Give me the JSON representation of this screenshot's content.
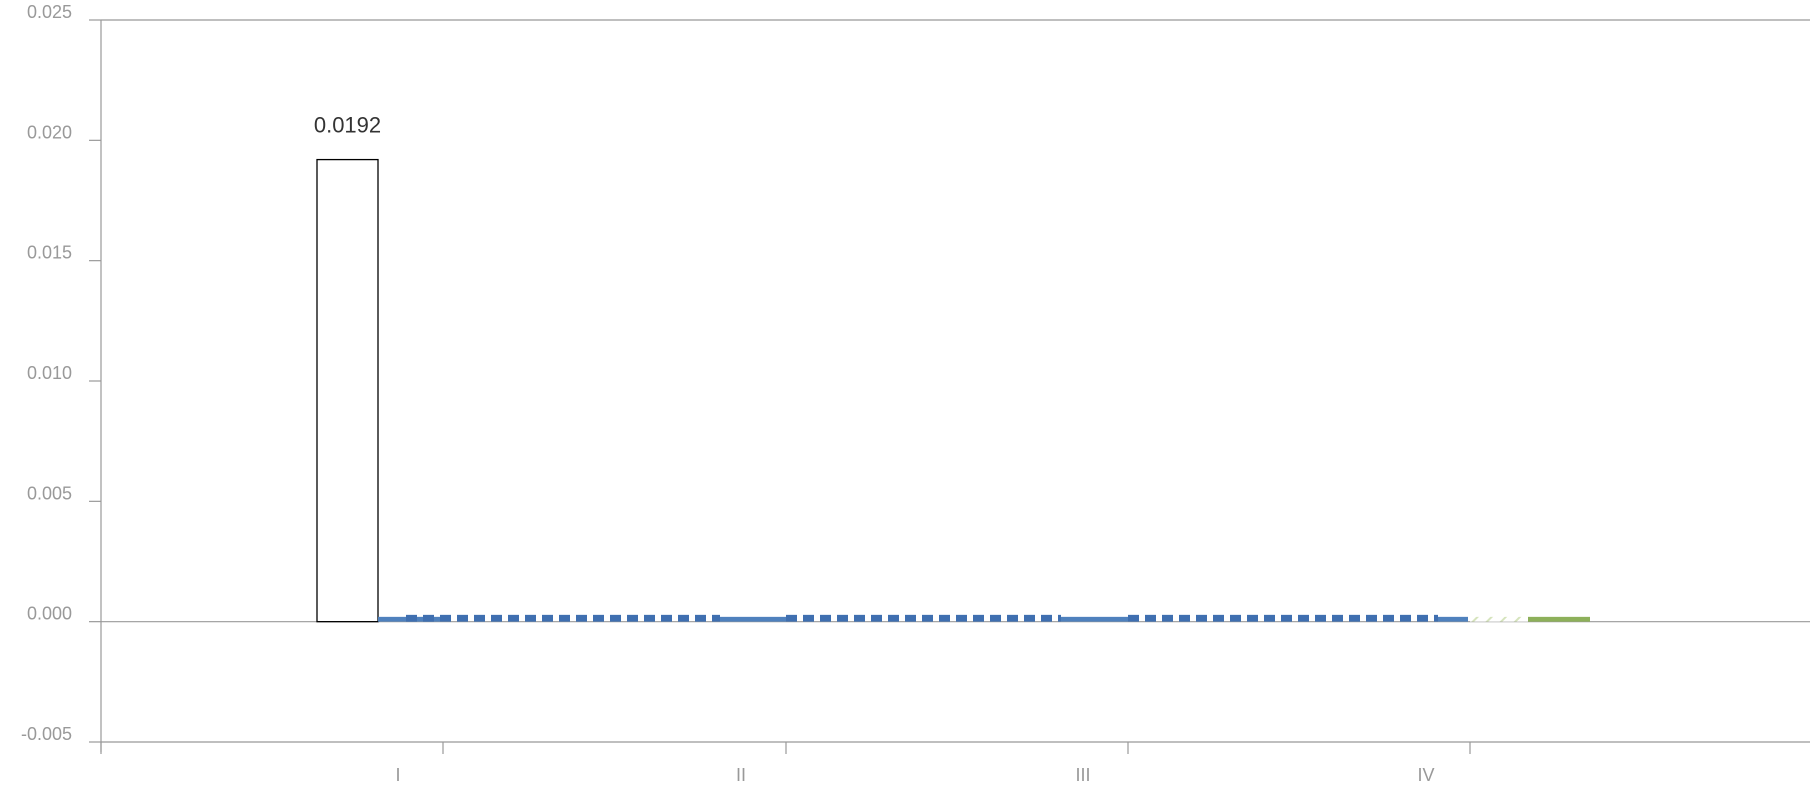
{
  "chart_data": {
    "type": "bar",
    "title": "",
    "xlabel": "",
    "ylabel": "",
    "ylim": [
      -0.005,
      0.025
    ],
    "y_ticks": [
      "-0.005",
      "0.000",
      "0.005",
      "0.010",
      "0.015",
      "0.020",
      "0.025"
    ],
    "y_tick_values": [
      -0.005,
      0.0,
      0.005,
      0.01,
      0.015,
      0.02,
      0.025
    ],
    "categories": [
      "I",
      "II",
      "III",
      "IV"
    ],
    "grid": false,
    "bars": [
      {
        "category": "I",
        "value": 0.0192,
        "style": "outline",
        "label": "0.0192"
      },
      {
        "category": "I",
        "value": 0.0002,
        "style": "solid-blue"
      },
      {
        "category": "I",
        "value": 0.0002,
        "style": "dashed-blue"
      },
      {
        "category": "II",
        "value": 0.0002,
        "style": "solid-blue"
      },
      {
        "category": "II",
        "value": 0.0002,
        "style": "dashed-blue"
      },
      {
        "category": "III",
        "value": 0.0002,
        "style": "solid-blue"
      },
      {
        "category": "III",
        "value": 0.0002,
        "style": "dashed-blue"
      },
      {
        "category": "IV",
        "value": 0.0002,
        "style": "solid-blue"
      },
      {
        "category": "IV",
        "value": 0.0002,
        "style": "hatched-green"
      },
      {
        "category": "IV",
        "value": 0.0002,
        "style": "solid-green"
      }
    ],
    "colors": {
      "axis": "#999999",
      "tick_text": "#999999",
      "label_text": "#333333",
      "blue": "#4f81bd",
      "blue_dashed": "#3f6fb0",
      "green": "#8db05a",
      "green_hatch": "#d6e4bd"
    }
  }
}
